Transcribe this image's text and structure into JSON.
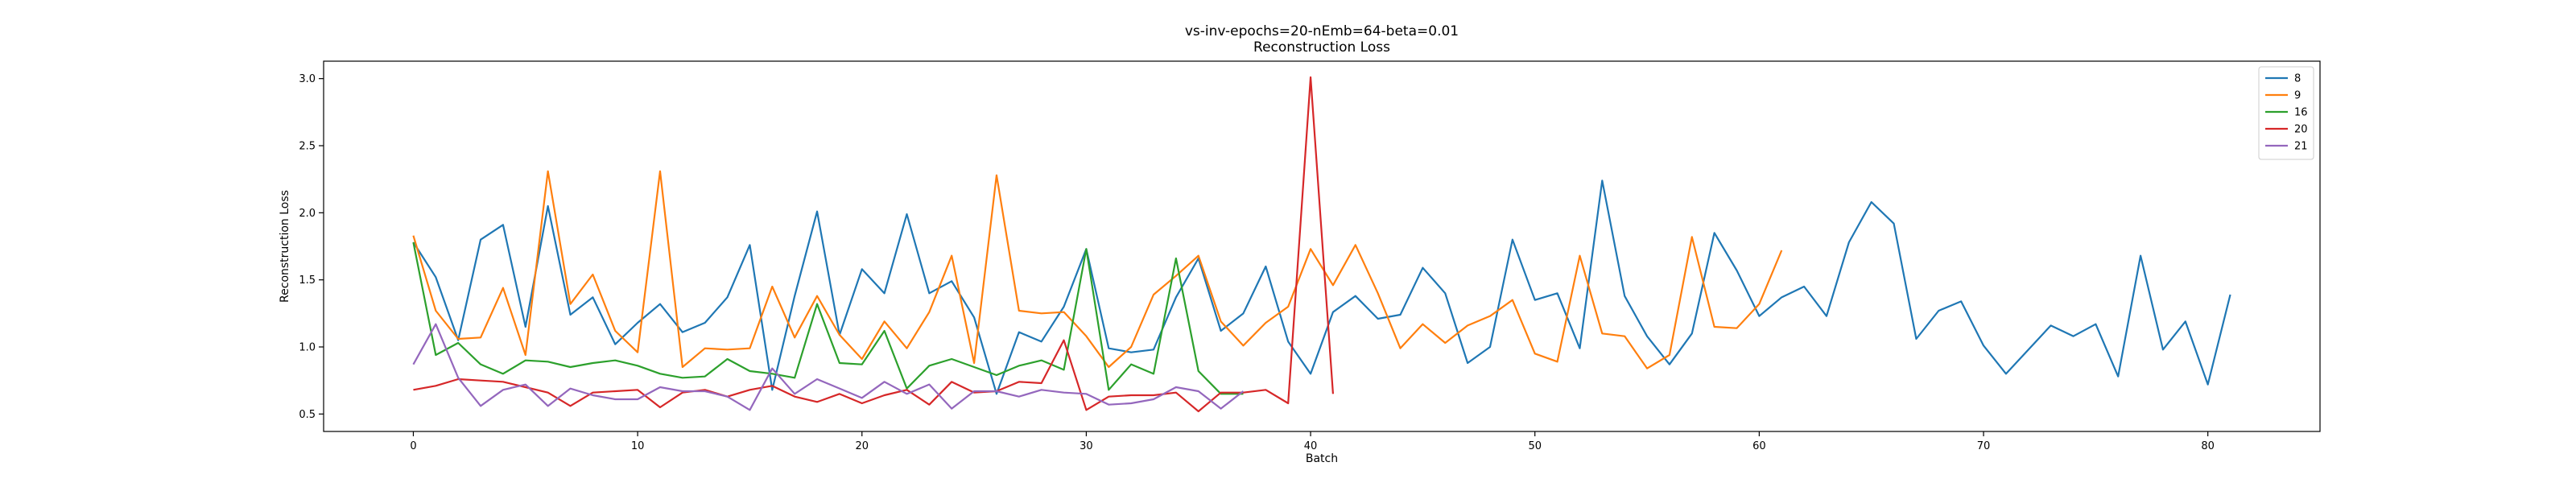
{
  "chart_data": {
    "type": "line",
    "title": "vs-inv-epochs=20-nEmb=64-beta=0.01",
    "subtitle": "Reconstruction Loss",
    "xlabel": "Batch",
    "ylabel": "Reconstruction Loss",
    "xlim": [
      -4,
      85
    ],
    "ylim": [
      0.37,
      3.13
    ],
    "xticks": [
      0,
      10,
      20,
      30,
      40,
      50,
      60,
      70,
      80
    ],
    "yticks": [
      0.5,
      1.0,
      1.5,
      2.0,
      2.5,
      3.0
    ],
    "xtick_labels": [
      "0",
      "10",
      "20",
      "30",
      "40",
      "50",
      "60",
      "70",
      "80"
    ],
    "ytick_labels": [
      "0.5",
      "1.0",
      "1.5",
      "2.0",
      "2.5",
      "3.0"
    ],
    "grid": false,
    "legend_position": "top-right",
    "series": [
      {
        "name": "8",
        "color": "#1f77b4",
        "values": [
          1.78,
          1.52,
          1.05,
          1.8,
          1.91,
          1.15,
          2.05,
          1.24,
          1.37,
          1.02,
          1.18,
          1.32,
          1.11,
          1.18,
          1.37,
          1.76,
          0.68,
          1.38,
          2.01,
          1.09,
          1.58,
          1.4,
          1.99,
          1.4,
          1.49,
          1.22,
          0.65,
          1.11,
          1.04,
          1.3,
          1.73,
          0.99,
          0.96,
          0.98,
          1.37,
          1.66,
          1.12,
          1.25,
          1.6,
          1.04,
          0.8,
          1.26,
          1.38,
          1.21,
          1.24,
          1.59,
          1.4,
          0.88,
          1.0,
          1.8,
          1.35,
          1.4,
          0.99,
          2.24,
          1.38,
          1.08,
          0.87,
          1.1,
          1.85,
          1.57,
          1.23,
          1.37,
          1.45,
          1.23,
          1.78,
          2.08,
          1.92,
          1.06,
          1.27,
          1.34,
          1.01,
          0.8,
          0.98,
          1.16,
          1.08,
          1.17,
          0.78,
          1.68,
          0.98,
          1.19,
          0.72,
          1.39
        ]
      },
      {
        "name": "9",
        "color": "#ff7f0e",
        "values": [
          1.83,
          1.27,
          1.06,
          1.07,
          1.44,
          0.94,
          2.31,
          1.32,
          1.54,
          1.12,
          0.96,
          2.31,
          0.85,
          0.99,
          0.98,
          0.99,
          1.45,
          1.07,
          1.38,
          1.09,
          0.91,
          1.19,
          0.99,
          1.26,
          1.68,
          0.88,
          2.28,
          1.27,
          1.25,
          1.26,
          1.08,
          0.85,
          1.0,
          1.39,
          1.53,
          1.68,
          1.19,
          1.01,
          1.18,
          1.3,
          1.73,
          1.46,
          1.76,
          1.4,
          0.99,
          1.17,
          1.03,
          1.16,
          1.23,
          1.35,
          0.95,
          0.89,
          1.68,
          1.1,
          1.08,
          0.84,
          0.94,
          1.82,
          1.15,
          1.14,
          1.32,
          1.72
        ]
      },
      {
        "name": "16",
        "color": "#2ca02c",
        "values": [
          1.78,
          0.94,
          1.03,
          0.87,
          0.8,
          0.9,
          0.89,
          0.85,
          0.88,
          0.9,
          0.86,
          0.8,
          0.77,
          0.78,
          0.91,
          0.82,
          0.8,
          0.77,
          1.32,
          0.88,
          0.87,
          1.12,
          0.69,
          0.86,
          0.91,
          0.85,
          0.79,
          0.86,
          0.9,
          0.83,
          1.73,
          0.68,
          0.87,
          0.8,
          1.66,
          0.82,
          0.65,
          0.65
        ]
      },
      {
        "name": "20",
        "color": "#d62728",
        "values": [
          0.68,
          0.71,
          0.76,
          0.75,
          0.74,
          0.7,
          0.66,
          0.56,
          0.66,
          0.67,
          0.68,
          0.55,
          0.66,
          0.68,
          0.63,
          0.68,
          0.71,
          0.63,
          0.59,
          0.65,
          0.58,
          0.64,
          0.68,
          0.57,
          0.74,
          0.66,
          0.67,
          0.74,
          0.73,
          1.05,
          0.53,
          0.63,
          0.64,
          0.64,
          0.66,
          0.52,
          0.66,
          0.66,
          0.68,
          0.58,
          3.01,
          0.65
        ]
      },
      {
        "name": "21",
        "color": "#9467bd",
        "values": [
          0.87,
          1.17,
          0.77,
          0.56,
          0.68,
          0.72,
          0.56,
          0.69,
          0.64,
          0.61,
          0.61,
          0.7,
          0.67,
          0.67,
          0.63,
          0.53,
          0.84,
          0.65,
          0.76,
          0.69,
          0.62,
          0.74,
          0.65,
          0.72,
          0.54,
          0.67,
          0.67,
          0.63,
          0.68,
          0.66,
          0.65,
          0.57,
          0.58,
          0.61,
          0.7,
          0.67,
          0.54,
          0.67
        ]
      }
    ]
  }
}
